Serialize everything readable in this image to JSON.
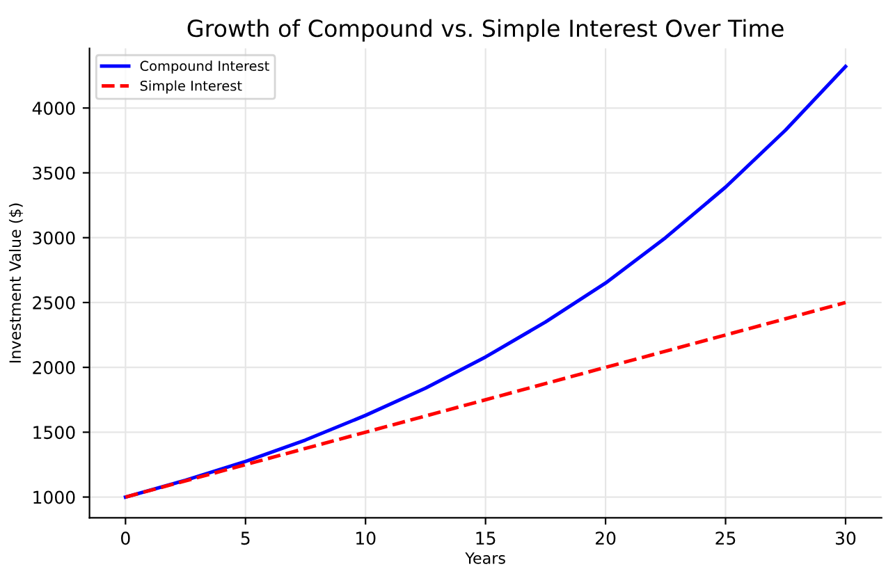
{
  "chart_data": {
    "type": "line",
    "title": "Growth of Compound vs. Simple Interest Over Time",
    "xlabel": "Years",
    "ylabel": "Investment Value ($)",
    "xlim": [
      -1.5,
      31.5
    ],
    "xticks": [
      0,
      5,
      10,
      15,
      20,
      25,
      30
    ],
    "ylim": [
      840,
      4460
    ],
    "yticks": [
      1000,
      1500,
      2000,
      2500,
      3000,
      3500,
      4000
    ],
    "grid": true,
    "legend": "top left",
    "series": [
      {
        "name": "Compound Interest",
        "color": "#0000ff",
        "line_style": "solid",
        "x": [
          0,
          2.5,
          5,
          7.5,
          10,
          12.5,
          15,
          17.5,
          20,
          22.5,
          25,
          27.5,
          30
        ],
        "values": [
          1000,
          1130,
          1275,
          1440,
          1630,
          1840,
          2080,
          2350,
          2650,
          3000,
          3390,
          3830,
          4320
        ]
      },
      {
        "name": "Simple Interest",
        "color": "#ff0000",
        "line_style": "dashed",
        "x": [
          0,
          10,
          20,
          30
        ],
        "values": [
          1000,
          1500,
          2000,
          2500
        ]
      }
    ]
  }
}
